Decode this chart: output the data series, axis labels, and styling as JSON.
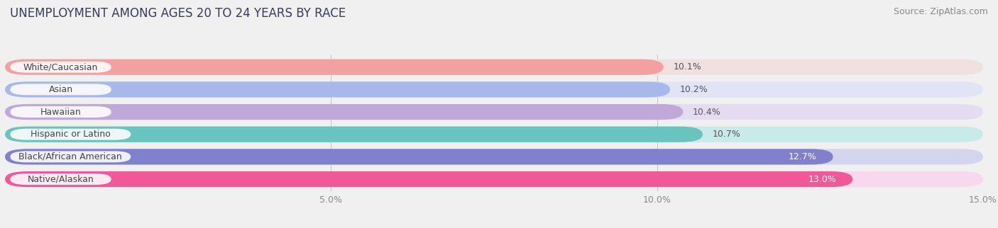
{
  "title": "UNEMPLOYMENT AMONG AGES 20 TO 24 YEARS BY RACE",
  "source": "Source: ZipAtlas.com",
  "categories": [
    "White/Caucasian",
    "Asian",
    "Hawaiian",
    "Hispanic or Latino",
    "Black/African American",
    "Native/Alaskan"
  ],
  "values": [
    10.1,
    10.2,
    10.4,
    10.7,
    12.7,
    13.0
  ],
  "bar_colors": [
    "#F2A0A0",
    "#A8B8E8",
    "#C0A8D8",
    "#68C4BC",
    "#8080CC",
    "#F05898"
  ],
  "bar_bg_colors": [
    "#F0E0E0",
    "#E0E4F4",
    "#E4DCF0",
    "#C8EAE8",
    "#D4D4EE",
    "#F8D8EC"
  ],
  "value_label_colors": [
    "#555555",
    "#555555",
    "#555555",
    "#555555",
    "#ffffff",
    "#ffffff"
  ],
  "value_labels": [
    "10.1%",
    "10.2%",
    "10.4%",
    "10.7%",
    "12.7%",
    "13.0%"
  ],
  "xlim": [
    0,
    15.0
  ],
  "xticklabels": [
    "",
    "5.0%",
    "10.0%",
    "15.0%"
  ],
  "xtick_positions": [
    0,
    5.0,
    10.0,
    15.0
  ],
  "title_fontsize": 12,
  "source_fontsize": 9,
  "bar_label_fontsize": 9,
  "category_fontsize": 9,
  "background_color": "#f0f0f0"
}
